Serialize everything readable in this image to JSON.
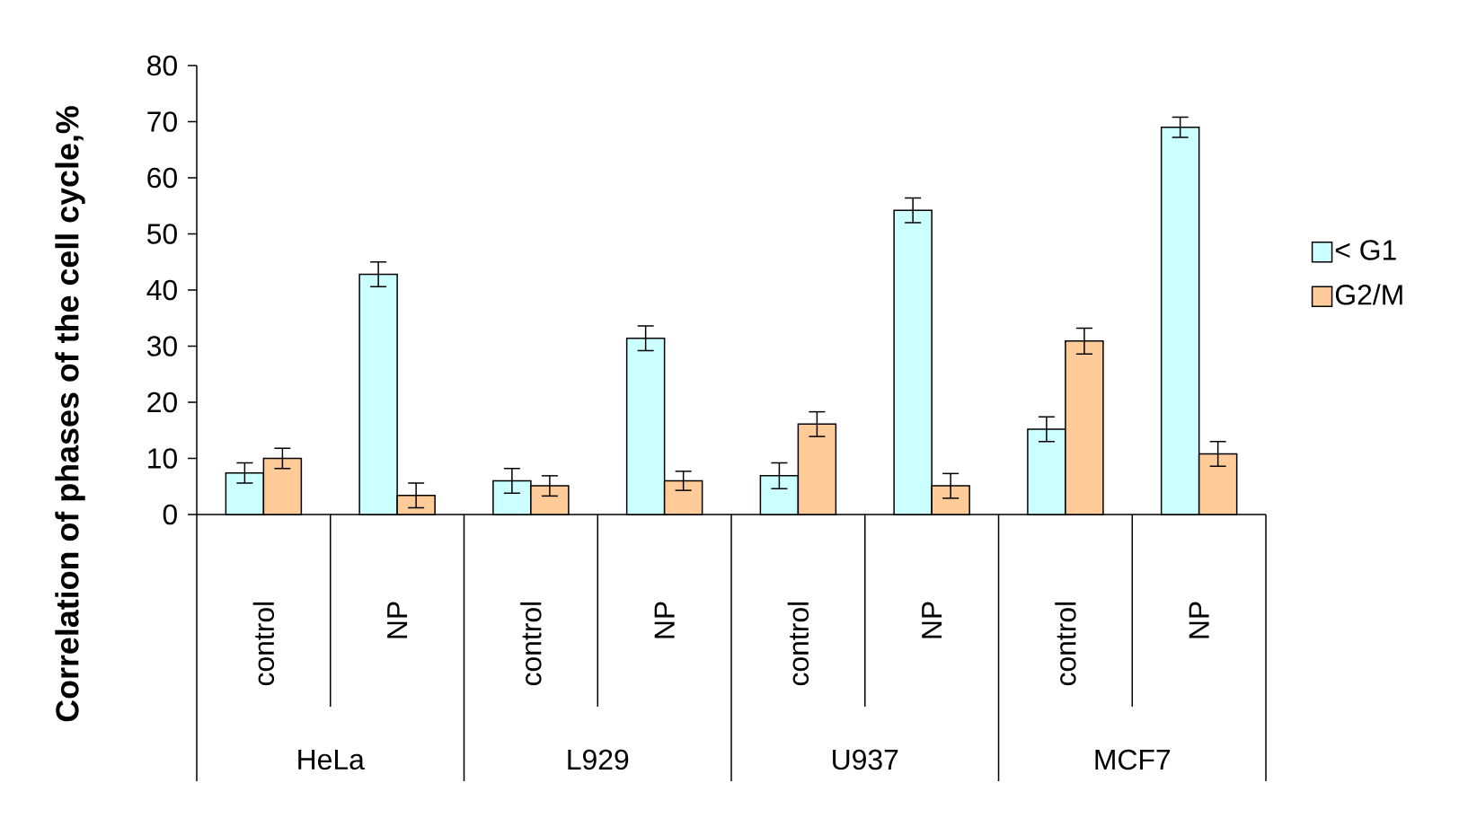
{
  "chart_data": {
    "type": "bar",
    "ylabel": "Correlation of phases of the cell cycle,%",
    "categories": [
      "control",
      "NP",
      "control",
      "NP",
      "control",
      "NP",
      "control",
      "NP"
    ],
    "annotations": [
      "HeLa",
      "L929",
      "U937",
      "MCF7"
    ],
    "series": [
      {
        "name": "< G1",
        "color": "#ccffff",
        "values": [
          7.4,
          42.8,
          6.0,
          31.4,
          6.9,
          54.2,
          15.2,
          69.0
        ],
        "errors": [
          1.8,
          2.2,
          2.2,
          2.2,
          2.3,
          2.2,
          2.2,
          1.8
        ]
      },
      {
        "name": "G2/M",
        "color": "#ffcc99",
        "values": [
          10.0,
          3.4,
          5.1,
          6.0,
          16.1,
          5.1,
          30.9,
          10.8
        ],
        "errors": [
          1.8,
          2.2,
          1.8,
          1.7,
          2.2,
          2.2,
          2.3,
          2.2
        ]
      }
    ],
    "ylim": [
      0,
      80
    ],
    "yticks": [
      0,
      10,
      20,
      30,
      40,
      50,
      60,
      70,
      80
    ],
    "legend": "right",
    "grid": false
  }
}
